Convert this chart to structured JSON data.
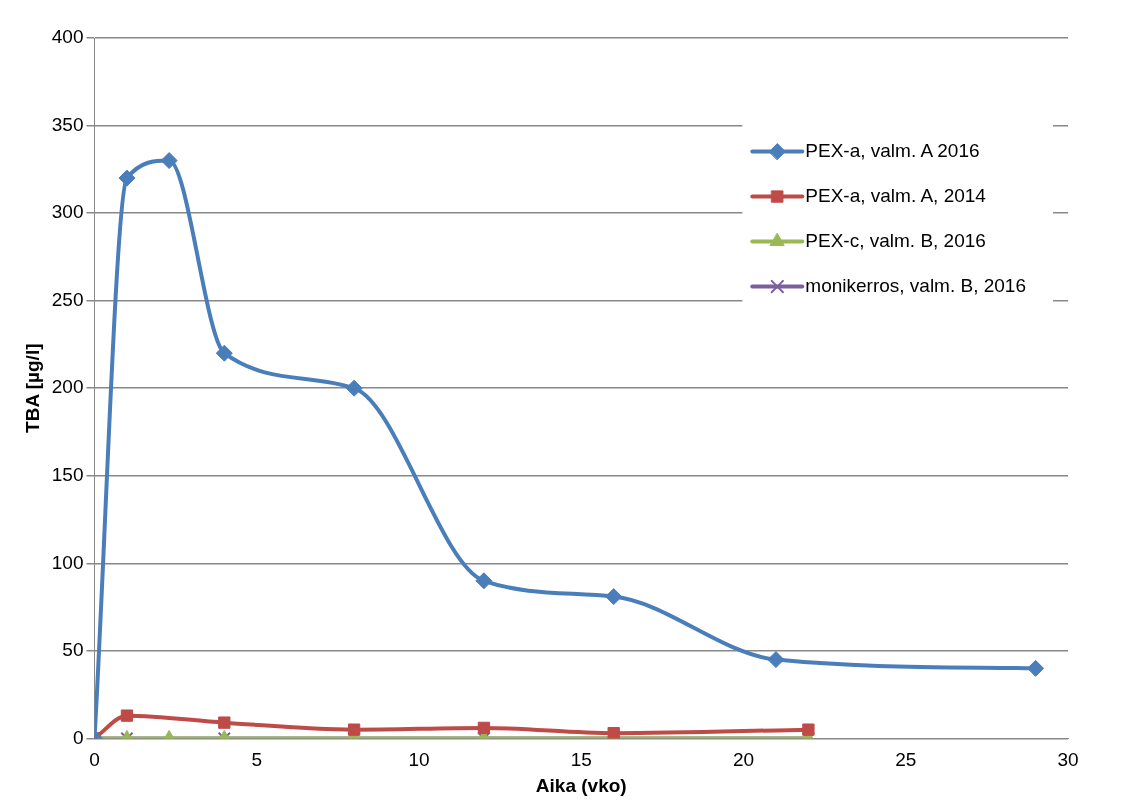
{
  "chart_data": {
    "type": "line",
    "xlabel": "Aika (vko)",
    "ylabel": "TBA [µg/l]",
    "xlim": [
      0,
      30
    ],
    "xticks": [
      0,
      5,
      10,
      15,
      20,
      25,
      30
    ],
    "ylim": [
      0,
      400
    ],
    "yticks": [
      0,
      50,
      100,
      150,
      200,
      250,
      300,
      350,
      400
    ],
    "grid": "y",
    "legend": "top right",
    "line_style": "solid",
    "series": [
      {
        "name": "PEX-a, valm. A 2016",
        "color": "#4a7ebb",
        "marker": "diamond",
        "x": [
          0,
          1,
          2.3,
          4,
          8,
          12,
          16,
          21,
          29
        ],
        "values": [
          0,
          320,
          330,
          220,
          200,
          90,
          81,
          45,
          40
        ]
      },
      {
        "name": "PEX-a, valm. A, 2014",
        "color": "#be4b48",
        "marker": "square",
        "x": [
          0,
          1,
          4,
          8,
          12,
          16,
          22
        ],
        "values": [
          0,
          13,
          9,
          5,
          6,
          3,
          5
        ]
      },
      {
        "name": "PEX-c, valm. B, 2016",
        "color": "#98b954",
        "marker": "triangle",
        "x": [
          0,
          1,
          2.3,
          4,
          8,
          12,
          16,
          22
        ],
        "values": [
          0,
          0,
          0,
          0,
          0,
          0,
          0,
          0
        ]
      },
      {
        "name": "monikerros, valm. B, 2016",
        "color": "#7d5fa0",
        "marker": "cross",
        "x": [
          0,
          1,
          4,
          8,
          12,
          16,
          22
        ],
        "values": [
          0,
          0,
          0,
          0,
          0,
          0,
          0
        ]
      }
    ]
  }
}
